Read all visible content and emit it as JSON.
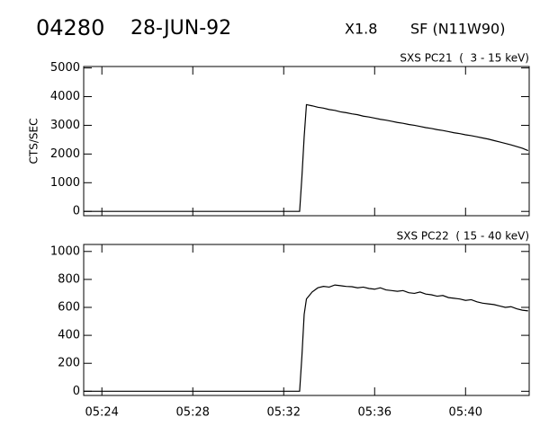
{
  "header": {
    "event": "04280",
    "date": "28-JUN-92",
    "class": "X1.8",
    "location": "SF (N11W90)"
  },
  "chart_data": [
    {
      "type": "line",
      "title": "SXS PC21  (  3 - 15 keV)",
      "y_label": "CTS/SEC",
      "x": [
        23.2,
        32.7,
        32.8,
        32.9,
        33.0,
        33.25,
        33.5,
        33.75,
        34,
        34.25,
        34.5,
        34.75,
        35,
        35.25,
        35.5,
        35.75,
        36,
        36.25,
        36.5,
        36.75,
        37,
        37.25,
        37.5,
        37.75,
        38,
        38.25,
        38.5,
        38.75,
        39,
        39.25,
        39.5,
        39.75,
        40,
        40.25,
        40.5,
        40.75,
        41,
        41.25,
        41.5,
        41.75,
        42,
        42.25,
        42.5,
        42.75
      ],
      "values": [
        0,
        0,
        1200,
        2600,
        3720,
        3680,
        3630,
        3600,
        3550,
        3520,
        3470,
        3440,
        3400,
        3370,
        3320,
        3290,
        3250,
        3210,
        3180,
        3140,
        3100,
        3070,
        3030,
        3000,
        2960,
        2920,
        2890,
        2850,
        2820,
        2780,
        2740,
        2710,
        2670,
        2640,
        2600,
        2560,
        2520,
        2470,
        2420,
        2370,
        2320,
        2260,
        2200,
        2120
      ],
      "color": "#000000",
      "xlim": [
        23.2,
        42.8
      ],
      "xticks": [
        24,
        28,
        32,
        36,
        40
      ],
      "ylim": [
        -150,
        5050
      ],
      "yticks": [
        0,
        1000,
        2000,
        3000,
        4000,
        5000
      ]
    },
    {
      "type": "line",
      "title": "SXS PC22  ( 15 - 40 keV)",
      "x": [
        23.2,
        32.7,
        32.8,
        32.9,
        33.0,
        33.25,
        33.5,
        33.75,
        34,
        34.25,
        34.5,
        34.75,
        35,
        35.25,
        35.5,
        35.75,
        36,
        36.25,
        36.5,
        36.75,
        37,
        37.25,
        37.5,
        37.75,
        38,
        38.25,
        38.5,
        38.75,
        39,
        39.25,
        39.5,
        39.75,
        40,
        40.25,
        40.5,
        40.75,
        41,
        41.25,
        41.5,
        41.75,
        42,
        42.25,
        42.5,
        42.75
      ],
      "values": [
        0,
        0,
        250,
        550,
        660,
        710,
        740,
        750,
        745,
        760,
        755,
        750,
        748,
        740,
        745,
        735,
        730,
        740,
        725,
        720,
        715,
        720,
        705,
        700,
        710,
        695,
        690,
        680,
        685,
        670,
        665,
        660,
        650,
        655,
        640,
        630,
        625,
        620,
        610,
        600,
        605,
        590,
        580,
        575
      ],
      "color": "#000000",
      "xlim": [
        23.2,
        42.8
      ],
      "xticks": [
        {
          "value": 24,
          "label": "05:24"
        },
        {
          "value": 28,
          "label": "05:28"
        },
        {
          "value": 32,
          "label": "05:32"
        },
        {
          "value": 36,
          "label": "05:36"
        },
        {
          "value": 40,
          "label": "05:40"
        }
      ],
      "ylim": [
        -30,
        1050
      ],
      "yticks": [
        0,
        200,
        400,
        600,
        800,
        1000
      ]
    }
  ]
}
